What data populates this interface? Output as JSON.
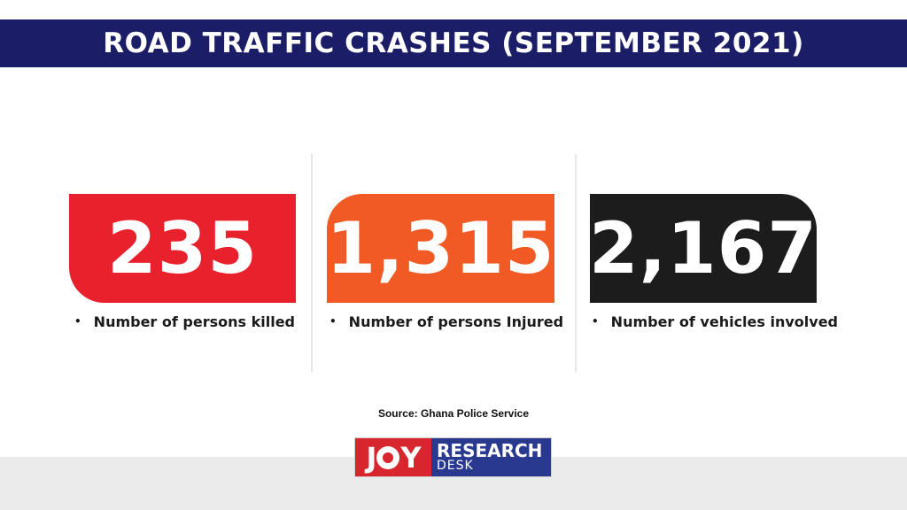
{
  "header": {
    "title": "ROAD TRAFFIC CRASHES (SEPTEMBER 2021)"
  },
  "stats": [
    {
      "value": "235",
      "label": "Number of persons killed",
      "color": "#e8212c"
    },
    {
      "value": "1,315",
      "label": "Number of persons Injured",
      "color": "#f15a24"
    },
    {
      "value": "2,167",
      "label": "Number of vehicles involved",
      "color": "#1c1c1c"
    }
  ],
  "bullet": "•",
  "source": "Source: Ghana Police Service",
  "logo": {
    "left_text_a": "J",
    "left_text_b": "Y",
    "line1": "RESEARCH",
    "line2": "DESK",
    "red": "#d7262d",
    "blue": "#2a3990"
  },
  "colors": {
    "title_bar": "#1b1d66",
    "divider": "#e6e6e6",
    "footer_band": "#ebebeb"
  }
}
